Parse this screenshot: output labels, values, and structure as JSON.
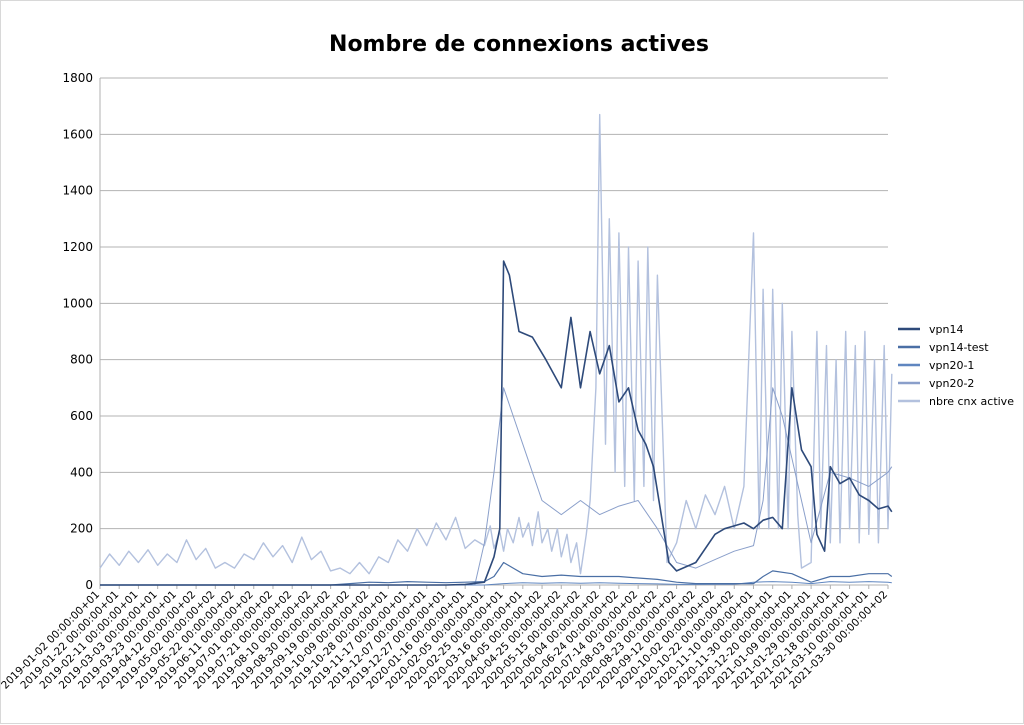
{
  "chart_data": {
    "type": "line",
    "title": "Nombre de connexions actives",
    "xlabel": "",
    "ylabel": "",
    "ylim": [
      0,
      1800
    ],
    "yticks": [
      0,
      200,
      400,
      600,
      800,
      1000,
      1200,
      1400,
      1600,
      1800
    ],
    "grid": true,
    "legend_position": "right",
    "x_tick_labels": [
      "2019-01-02 00:00:00+01",
      "2019-01-22 00:00:00+01",
      "2019-02-11 00:00:00+01",
      "2019-03-03 00:00:00+01",
      "2019-03-23 00:00:00+01",
      "2019-04-12 00:00:00+02",
      "2019-05-02 00:00:00+02",
      "2019-05-22 00:00:00+02",
      "2019-06-11 00:00:00+02",
      "2019-07-01 00:00:00+02",
      "2019-07-21 00:00:00+02",
      "2019-08-10 00:00:00+02",
      "2019-08-30 00:00:00+02",
      "2019-09-19 00:00:00+02",
      "2019-10-09 00:00:00+02",
      "2019-10-28 00:00:00+01",
      "2019-11-17 00:00:00+01",
      "2019-12-07 00:00:00+01",
      "2019-12-27 00:00:00+01",
      "2020-01-16 00:00:00+01",
      "2020-02-05 00:00:00+01",
      "2020-02-25 00:00:00+01",
      "2020-03-16 00:00:00+01",
      "2020-04-05 00:00:00+02",
      "2020-04-25 00:00:00+02",
      "2020-05-15 00:00:00+02",
      "2020-06-04 00:00:00+02",
      "2020-06-24 00:00:00+02",
      "2020-07-14 00:00:00+02",
      "2020-08-03 00:00:00+02",
      "2020-08-23 00:00:00+02",
      "2020-09-12 00:00:00+02",
      "2020-10-02 00:00:00+02",
      "2020-10-22 00:00:00+02",
      "2020-11-10 00:00:00+01",
      "2020-11-30 00:00:00+01",
      "2020-12-20 00:00:00+01",
      "2021-01-09 00:00:00+01",
      "2021-01-29 00:00:00+01",
      "2021-02-18 00:00:00+01",
      "2021-03-10 00:00:00+01",
      "2021-03-30 00:00:00+02"
    ],
    "series": [
      {
        "name": "vpn14",
        "color": "#2e4a7a",
        "width": 1.6,
        "x_tick_position": [
          0,
          18,
          19,
          20,
          20.5,
          20.8,
          21,
          21.3,
          21.8,
          22.5,
          23.2,
          24,
          24.5,
          25,
          25.5,
          26,
          26.5,
          27,
          27.5,
          28,
          28.4,
          28.8,
          29.2,
          29.6,
          30,
          31,
          32,
          32.5,
          33,
          33.5,
          34,
          34.5,
          35,
          35.5,
          36,
          36.5,
          37,
          37.3,
          37.7,
          38,
          38.5,
          39,
          39.5,
          40,
          40.5,
          41,
          41.2
        ],
        "values": [
          0,
          0,
          2,
          10,
          100,
          200,
          1150,
          1100,
          900,
          880,
          800,
          700,
          950,
          700,
          900,
          750,
          850,
          650,
          700,
          550,
          500,
          420,
          250,
          80,
          50,
          80,
          180,
          200,
          210,
          220,
          200,
          230,
          240,
          200,
          700,
          480,
          420,
          180,
          120,
          420,
          360,
          380,
          320,
          300,
          270,
          280,
          260
        ]
      },
      {
        "name": "vpn14-test",
        "color": "#4a6fa5",
        "width": 1.2,
        "x_tick_position": [
          0,
          12,
          13,
          14,
          15,
          16,
          17,
          18,
          19,
          20,
          20.5,
          20.8,
          21,
          21.5,
          22,
          23,
          24,
          25,
          26,
          27,
          28,
          29,
          30,
          31,
          32,
          33,
          34,
          34.5,
          35,
          36,
          37,
          38,
          39,
          40,
          41,
          41.2
        ],
        "values": [
          0,
          0,
          5,
          10,
          8,
          12,
          10,
          8,
          10,
          12,
          30,
          60,
          80,
          60,
          40,
          30,
          35,
          30,
          30,
          30,
          25,
          20,
          10,
          5,
          5,
          5,
          5,
          30,
          50,
          40,
          10,
          30,
          30,
          40,
          40,
          30
        ]
      },
      {
        "name": "vpn20-1",
        "color": "#5f86c0",
        "width": 1.0,
        "x_tick_position": [
          0,
          20,
          21,
          22,
          23,
          24,
          25,
          26,
          27,
          28,
          29,
          30,
          31,
          32,
          33,
          34,
          35,
          36,
          37,
          38,
          39,
          40,
          41,
          41.2
        ],
        "values": [
          0,
          0,
          5,
          8,
          6,
          8,
          6,
          8,
          6,
          5,
          4,
          2,
          2,
          3,
          3,
          10,
          12,
          10,
          5,
          12,
          10,
          12,
          10,
          8
        ]
      },
      {
        "name": "vpn20-2",
        "color": "#8a9fca",
        "width": 1.0,
        "x_tick_position": [
          0,
          19.5,
          20,
          20.5,
          21,
          21.5,
          22,
          23,
          24,
          25,
          26,
          27,
          28,
          29,
          30,
          31,
          32,
          33,
          34,
          34.5,
          35,
          35.5,
          36,
          37,
          38,
          39,
          40,
          41,
          41.2
        ],
        "values": [
          0,
          0,
          150,
          400,
          700,
          600,
          500,
          300,
          250,
          300,
          250,
          280,
          300,
          200,
          80,
          60,
          90,
          120,
          140,
          300,
          700,
          600,
          450,
          150,
          400,
          380,
          350,
          400,
          420
        ]
      },
      {
        "name": "nbre cnx active",
        "color": "#b3c1de",
        "width": 1.4,
        "x_tick_position": [
          0,
          0.5,
          1,
          1.5,
          2,
          2.5,
          3,
          3.5,
          4,
          4.5,
          5,
          5.5,
          6,
          6.5,
          7,
          7.5,
          8,
          8.5,
          9,
          9.5,
          10,
          10.5,
          11,
          11.5,
          12,
          12.5,
          13,
          13.5,
          14,
          14.5,
          15,
          15.5,
          16,
          16.5,
          17,
          17.5,
          18,
          18.5,
          19,
          19.5,
          20,
          20.3,
          20.5,
          20.8,
          21,
          21.2,
          21.5,
          21.8,
          22,
          22.3,
          22.5,
          22.8,
          23,
          23.3,
          23.5,
          23.8,
          24,
          24.3,
          24.5,
          24.8,
          25,
          25.3,
          25.5,
          25.8,
          26,
          26.3,
          26.5,
          26.8,
          27,
          27.3,
          27.5,
          27.8,
          28,
          28.3,
          28.5,
          28.8,
          29,
          29.5,
          30,
          30.5,
          31,
          31.5,
          32,
          32.5,
          33,
          33.5,
          34,
          34.3,
          34.5,
          34.8,
          35,
          35.3,
          35.5,
          35.8,
          36,
          36.3,
          36.5,
          37,
          37.3,
          37.5,
          37.8,
          38,
          38.3,
          38.5,
          38.8,
          39,
          39.3,
          39.5,
          39.8,
          40,
          40.3,
          40.5,
          40.8,
          41,
          41.2
        ],
        "values": [
          60,
          110,
          70,
          120,
          80,
          125,
          70,
          110,
          80,
          160,
          90,
          130,
          60,
          80,
          60,
          110,
          90,
          150,
          100,
          140,
          80,
          170,
          90,
          120,
          50,
          60,
          40,
          80,
          40,
          100,
          80,
          160,
          120,
          200,
          140,
          220,
          160,
          240,
          130,
          160,
          140,
          210,
          130,
          190,
          120,
          200,
          150,
          240,
          170,
          220,
          140,
          260,
          150,
          200,
          120,
          200,
          100,
          180,
          80,
          150,
          40,
          180,
          300,
          700,
          1670,
          500,
          1300,
          400,
          1250,
          350,
          1200,
          300,
          1150,
          350,
          1200,
          300,
          1100,
          80,
          150,
          300,
          200,
          320,
          250,
          350,
          200,
          350,
          1250,
          200,
          1050,
          200,
          1050,
          200,
          1000,
          200,
          900,
          250,
          60,
          80,
          900,
          200,
          850,
          150,
          800,
          150,
          900,
          200,
          850,
          150,
          900,
          180,
          800,
          150,
          850,
          200,
          750
        ]
      }
    ]
  }
}
